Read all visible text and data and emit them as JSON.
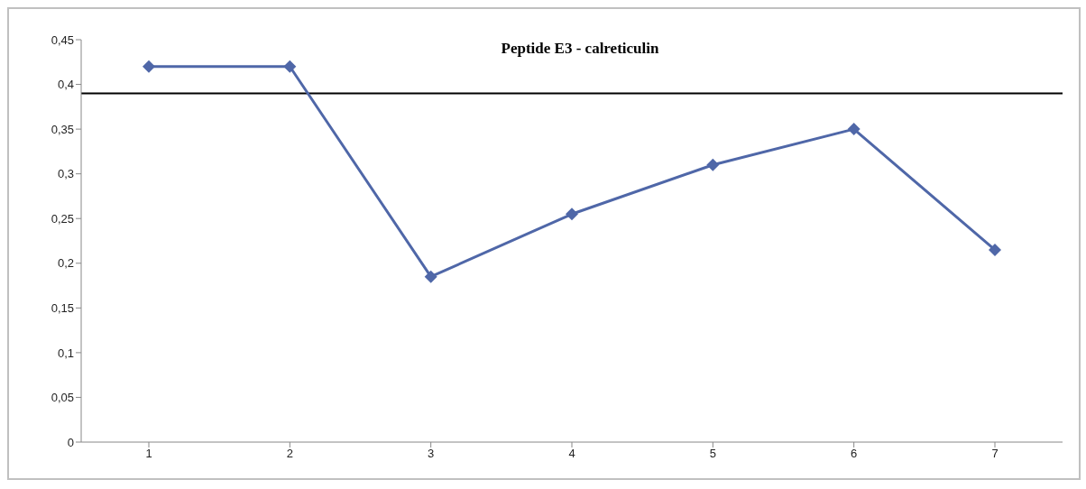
{
  "chart_data": {
    "type": "line",
    "title": "Peptide E3 - calreticulin",
    "categories": [
      "1",
      "2",
      "3",
      "4",
      "5",
      "6",
      "7"
    ],
    "series": [
      {
        "color": "#4f67a8",
        "values": [
          0.42,
          0.42,
          0.185,
          0.255,
          0.31,
          0.35,
          0.215
        ]
      }
    ],
    "ylim": [
      0,
      0.45
    ],
    "yticks": [
      {
        "value": 0,
        "label": "0"
      },
      {
        "value": 0.05,
        "label": "0,05"
      },
      {
        "value": 0.1,
        "label": "0,1"
      },
      {
        "value": 0.15,
        "label": "0,15"
      },
      {
        "value": 0.2,
        "label": "0,2"
      },
      {
        "value": 0.25,
        "label": "0,25"
      },
      {
        "value": 0.3,
        "label": "0,3"
      },
      {
        "value": 0.35,
        "label": "0,35"
      },
      {
        "value": 0.4,
        "label": "0,4"
      },
      {
        "value": 0.45,
        "label": "0,45"
      }
    ],
    "ref_lines": [
      {
        "axis": "y",
        "value": 0.39,
        "color": "#000000"
      }
    ],
    "marker": "diamond",
    "line_style": "solid",
    "grid": false,
    "legend": false
  }
}
